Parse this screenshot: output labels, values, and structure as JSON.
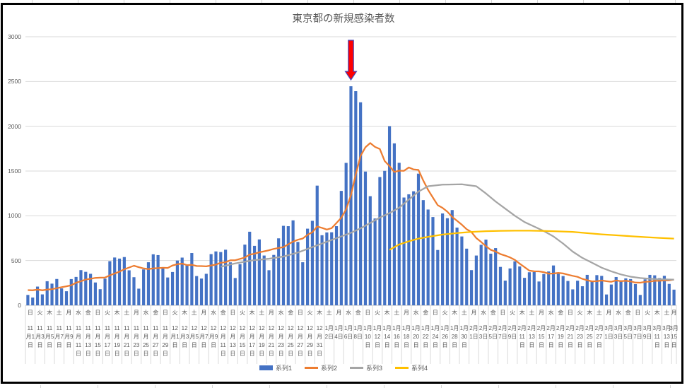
{
  "chart": {
    "title": "東京都の新規感染者数",
    "border_color": "#000000",
    "gridline_color": "#D9D9D9",
    "axis_line_color": "#BFBFBF",
    "text_color": "#595959",
    "legend": [
      {
        "label": "系列1",
        "type": "bar",
        "color": "#4472C4"
      },
      {
        "label": "系列2",
        "type": "line",
        "color": "#ED7D31"
      },
      {
        "label": "系列3",
        "type": "line",
        "color": "#A5A5A5"
      },
      {
        "label": "系列4",
        "type": "line",
        "color": "#FFC000"
      }
    ],
    "annotation": {
      "type": "down-arrow",
      "fill": "#FF0000",
      "outline": "#4444BB",
      "category_index": 67
    }
  },
  "chart_data": {
    "type": "bar",
    "title": "東京都の新規感染者数",
    "xlabel": "",
    "ylabel": "",
    "ylim": [
      0,
      3000
    ],
    "y_ticks": [
      0,
      500,
      1000,
      1500,
      2000,
      2500,
      3000
    ],
    "grid": true,
    "legend_position": "bottom",
    "x_label_interval": 2,
    "x_labels": [
      [
        "日",
        "11月1日"
      ],
      [
        "火",
        "11月3日"
      ],
      [
        "木",
        "11月5日"
      ],
      [
        "土",
        "11月7日"
      ],
      [
        "月",
        "11月9日"
      ],
      [
        "水",
        "11月11日"
      ],
      [
        "金",
        "11月13日"
      ],
      [
        "日",
        "11月15日"
      ],
      [
        "火",
        "11月17日"
      ],
      [
        "木",
        "11月19日"
      ],
      [
        "土",
        "11月21日"
      ],
      [
        "月",
        "11月23日"
      ],
      [
        "水",
        "11月25日"
      ],
      [
        "金",
        "11月27日"
      ],
      [
        "日",
        "11月29日"
      ],
      [
        "火",
        "12月1日"
      ],
      [
        "木",
        "12月3日"
      ],
      [
        "土",
        "12月5日"
      ],
      [
        "月",
        "12月7日"
      ],
      [
        "水",
        "12月9日"
      ],
      [
        "金",
        "12月11日"
      ],
      [
        "日",
        "12月13日"
      ],
      [
        "火",
        "12月15日"
      ],
      [
        "木",
        "12月17日"
      ],
      [
        "土",
        "12月19日"
      ],
      [
        "月",
        "12月21日"
      ],
      [
        "水",
        "12月23日"
      ],
      [
        "金",
        "12月25日"
      ],
      [
        "日",
        "12月27日"
      ],
      [
        "火",
        "12月29日"
      ],
      [
        "木",
        "12月31日"
      ],
      [
        "土",
        "1月2日"
      ],
      [
        "月",
        "1月4日"
      ],
      [
        "水",
        "1月6日"
      ],
      [
        "金",
        "1月8日"
      ],
      [
        "日",
        "1月10日"
      ],
      [
        "火",
        "1月12日"
      ],
      [
        "木",
        "1月14日"
      ],
      [
        "土",
        "1月16日"
      ],
      [
        "月",
        "1月18日"
      ],
      [
        "水",
        "1月20日"
      ],
      [
        "金",
        "1月22日"
      ],
      [
        "日",
        "1月24日"
      ],
      [
        "火",
        "1月26日"
      ],
      [
        "木",
        "1月28日"
      ],
      [
        "土",
        "1月30日"
      ],
      [
        "月",
        "2月1日"
      ],
      [
        "水",
        "2月3日"
      ],
      [
        "金",
        "2月5日"
      ],
      [
        "日",
        "2月7日"
      ],
      [
        "火",
        "2月9日"
      ],
      [
        "木",
        "2月11日"
      ],
      [
        "土",
        "2月13日"
      ],
      [
        "月",
        "2月15日"
      ],
      [
        "水",
        "2月17日"
      ],
      [
        "金",
        "2月19日"
      ],
      [
        "日",
        "2月21日"
      ],
      [
        "火",
        "2月23日"
      ],
      [
        "木",
        "2月25日"
      ],
      [
        "土",
        "2月27日"
      ],
      [
        "月",
        "3月1日"
      ],
      [
        "水",
        "3月3日"
      ],
      [
        "金",
        "3月5日"
      ],
      [
        "日",
        "3月7日"
      ],
      [
        "火",
        "3月9日"
      ],
      [
        "木",
        "3月11日"
      ],
      [
        "土",
        "3月13日"
      ],
      [
        "月",
        "3月15日"
      ]
    ],
    "series": [
      {
        "name": "系列1",
        "type": "bar",
        "color": "#4472C4",
        "values": [
          116,
          87,
          209,
          122,
          269,
          242,
          294,
          189,
          157,
          293,
          317,
          393,
          374,
          352,
          255,
          180,
          298,
          493,
          534,
          522,
          539,
          391,
          314,
          186,
          401,
          481,
          570,
          561,
          418,
          311,
          372,
          500,
          533,
          449,
          584,
          327,
          299,
          352,
          572,
          602,
          595,
          621,
          480,
          305,
          460,
          678,
          822,
          664,
          736,
          556,
          392,
          563,
          748,
          888,
          884,
          949,
          708,
          481,
          856,
          944,
          1337,
          783,
          814,
          816,
          884,
          1278,
          1591,
          2447,
          2392,
          2268,
          1494,
          1219,
          970,
          1433,
          1502,
          2001,
          1809,
          1592,
          1204,
          1240,
          1274,
          1471,
          1175,
          1070,
          986,
          618,
          1026,
          973,
          1064,
          868,
          769,
          633,
          393,
          556,
          676,
          734,
          577,
          639,
          429,
          276,
          412,
          491,
          434,
          307,
          369,
          371,
          266,
          350,
          378,
          445,
          353,
          327,
          272,
          178,
          275,
          213,
          340,
          270,
          337,
          329,
          121,
          232,
          316,
          279,
          301,
          293,
          237,
          116,
          290,
          340,
          335,
          304,
          330,
          239,
          175
        ]
      },
      {
        "name": "系列2",
        "type": "line",
        "color": "#ED7D31",
        "values": [
          170,
          167,
          175,
          168,
          175,
          180,
          191,
          202,
          212,
          224,
          252,
          269,
          288,
          296,
          306,
          309,
          310,
          335,
          355,
          376,
          403,
          422,
          442,
          426,
          412,
          405,
          412,
          415,
          419,
          418,
          445,
          459,
          466,
          449,
          452,
          439,
          438,
          435,
          445,
          455,
          476,
          481,
          503,
          504,
          519,
          534,
          566,
          576,
          592,
          603,
          615,
          630,
          640,
          650,
          681,
          711,
          733,
          746,
          788,
          816,
          880,
          865,
          846,
          862,
          919,
          979,
          1072,
          1230,
          1460,
          1668,
          1765,
          1813,
          1769,
          1746,
          1611,
          1555,
          1490,
          1504,
          1502,
          1540,
          1517,
          1513,
          1395,
          1289,
          1203,
          1119,
          1089,
          1046,
          987,
          944,
          901,
          850,
          818,
          751,
          708,
          661,
          620,
          601,
          572,
          555,
          535,
          508,
          465,
          427,
          388,
          380,
          379,
          370,
          354,
          355,
          362,
          356,
          342,
          329,
          318,
          295,
          280,
          268,
          269,
          277,
          269,
          263,
          278,
          269,
          274,
          267,
          254,
          253,
          262,
          265,
          273,
          274,
          279,
          279,
          288
        ]
      },
      {
        "name": "系列3",
        "type": "line",
        "color": "#A5A5A5",
        "points": [
          [
            40,
            430
          ],
          [
            43,
            468
          ],
          [
            47,
            505
          ],
          [
            50,
            520
          ],
          [
            53,
            545
          ],
          [
            56,
            590
          ],
          [
            58,
            630
          ],
          [
            61,
            690
          ],
          [
            63,
            730
          ],
          [
            65,
            770
          ],
          [
            67,
            810
          ],
          [
            69,
            860
          ],
          [
            71,
            920
          ],
          [
            73,
            980
          ],
          [
            75,
            1030
          ],
          [
            77,
            1090
          ],
          [
            79,
            1180
          ],
          [
            81,
            1270
          ],
          [
            83,
            1330
          ],
          [
            86,
            1348
          ],
          [
            90,
            1352
          ],
          [
            93,
            1330
          ],
          [
            95,
            1250
          ],
          [
            97,
            1160
          ],
          [
            99,
            1080
          ],
          [
            101,
            1000
          ],
          [
            103,
            930
          ],
          [
            105,
            880
          ],
          [
            107,
            830
          ],
          [
            109,
            770
          ],
          [
            111,
            690
          ],
          [
            113,
            600
          ],
          [
            115,
            530
          ],
          [
            117,
            476
          ],
          [
            119,
            420
          ],
          [
            121,
            380
          ],
          [
            123,
            345
          ],
          [
            125,
            320
          ],
          [
            127,
            305
          ],
          [
            129,
            296
          ],
          [
            131,
            291
          ],
          [
            134,
            287
          ]
        ]
      },
      {
        "name": "系列4",
        "type": "line",
        "color": "#FFC000",
        "points": [
          [
            75,
            620
          ],
          [
            77,
            680
          ],
          [
            79,
            715
          ],
          [
            81,
            745
          ],
          [
            83,
            765
          ],
          [
            86,
            790
          ],
          [
            89,
            808
          ],
          [
            92,
            820
          ],
          [
            95,
            828
          ],
          [
            98,
            832
          ],
          [
            101,
            834
          ],
          [
            104,
            834
          ],
          [
            107,
            831
          ],
          [
            110,
            826
          ],
          [
            113,
            820
          ],
          [
            116,
            806
          ],
          [
            119,
            793
          ],
          [
            122,
            782
          ],
          [
            125,
            772
          ],
          [
            128,
            762
          ],
          [
            131,
            753
          ],
          [
            134,
            745
          ]
        ]
      }
    ]
  }
}
